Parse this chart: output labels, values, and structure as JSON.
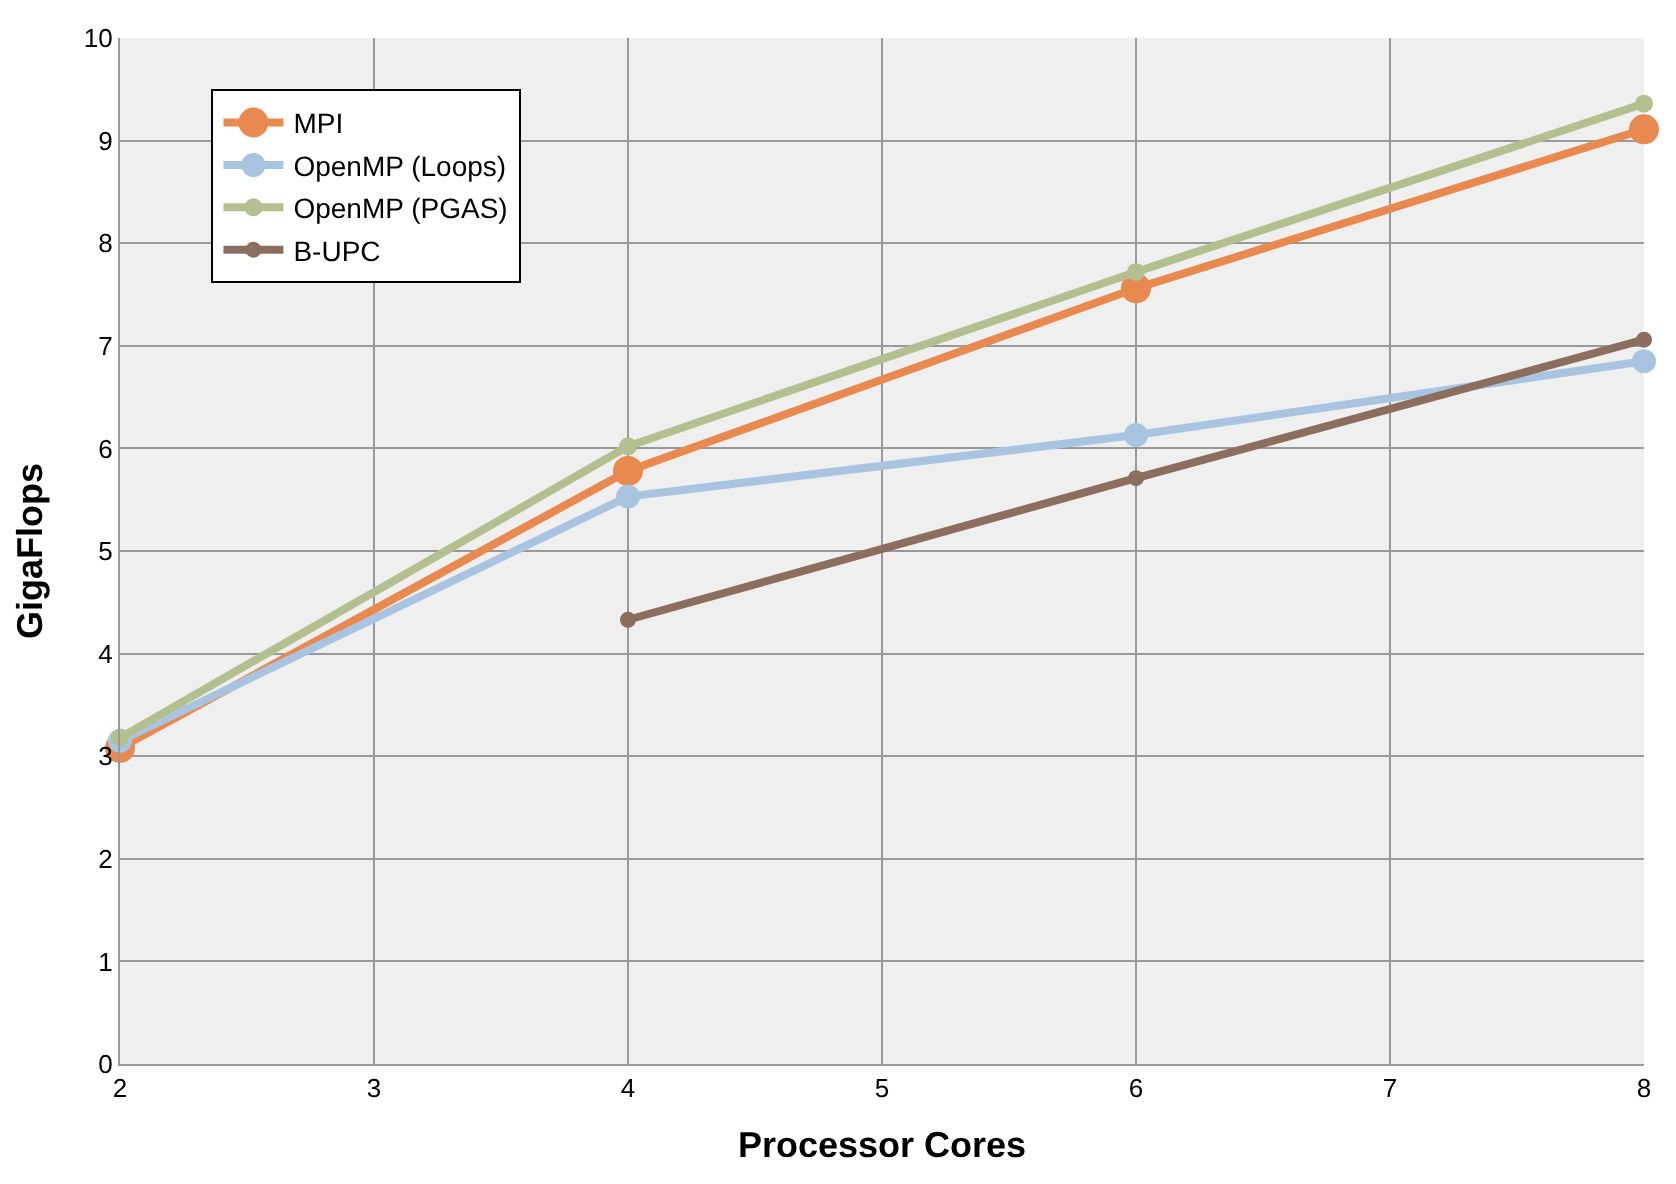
{
  "chart_data": {
    "type": "line",
    "xlabel": "Processor Cores",
    "ylabel": "GigaFlops",
    "x": [
      2,
      4,
      6,
      8
    ],
    "series": [
      {
        "name": "MPI",
        "color": "#e8894f",
        "values": [
          3.08,
          5.78,
          7.56,
          9.11
        ]
      },
      {
        "name": "OpenMP (Loops)",
        "color": "#a9c4e0",
        "values": [
          3.15,
          5.53,
          6.13,
          6.85
        ]
      },
      {
        "name": "OpenMP (PGAS)",
        "color": "#b3bf8f",
        "values": [
          3.18,
          6.02,
          7.72,
          9.36
        ]
      },
      {
        "name": "B-UPC",
        "color": "#8c6e5e",
        "values": [
          null,
          4.33,
          5.71,
          7.06
        ]
      }
    ],
    "xlim": [
      2,
      8
    ],
    "xticks": [
      2,
      3,
      4,
      5,
      6,
      7,
      8
    ],
    "ylim": [
      0,
      10
    ],
    "yticks": [
      0,
      1,
      2,
      3,
      4,
      5,
      6,
      7,
      8,
      9,
      10
    ],
    "grid": true,
    "legend": "top left",
    "marker": "circle",
    "line_style": "solid"
  }
}
